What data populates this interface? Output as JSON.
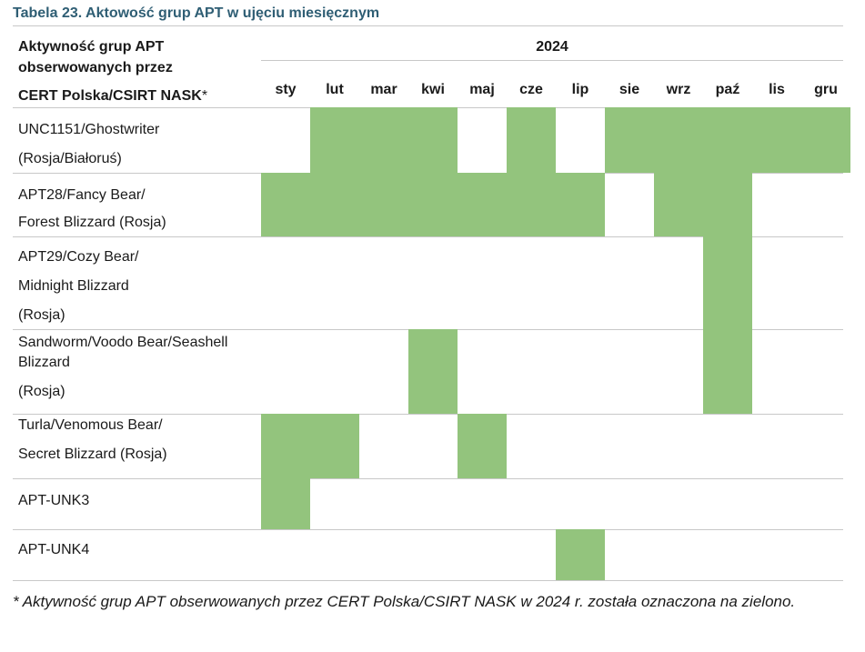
{
  "title": "Tabela 23. Aktowość grup APT w ujęciu miesięcznym",
  "header": {
    "label_line1": "Aktywność grup APT",
    "label_line2": "obserwowanych przez",
    "label_line3": "CERT Polska/CSIRT NASK",
    "label_asterisk": "*",
    "year": "2024"
  },
  "months": [
    "sty",
    "lut",
    "mar",
    "kwi",
    "maj",
    "cze",
    "lip",
    "sie",
    "wrz",
    "paź",
    "lis",
    "gru"
  ],
  "rows": [
    {
      "label_lines": [
        "UNC1151/Ghostwriter",
        "(Rosja/Białoruś)"
      ],
      "active": [
        false,
        true,
        true,
        true,
        false,
        true,
        false,
        true,
        true,
        true,
        true,
        true
      ]
    },
    {
      "label_lines": [
        "APT28/Fancy Bear/",
        "Forest Blizzard (Rosja)"
      ],
      "active": [
        true,
        true,
        true,
        true,
        true,
        true,
        true,
        false,
        true,
        true,
        false,
        false
      ]
    },
    {
      "label_lines": [
        "APT29/Cozy Bear/",
        "Midnight Blizzard",
        "(Rosja)"
      ],
      "active": [
        false,
        false,
        false,
        false,
        false,
        false,
        false,
        false,
        false,
        true,
        false,
        false
      ]
    },
    {
      "label_lines": [
        "Sandworm/Voodo  Bear/Seashell",
        "Blizzard",
        "(Rosja)"
      ],
      "active": [
        false,
        false,
        false,
        true,
        false,
        false,
        false,
        false,
        false,
        true,
        false,
        false
      ]
    },
    {
      "label_lines": [
        "Turla/Venomous Bear/",
        "Secret Blizzard (Rosja)"
      ],
      "active": [
        true,
        true,
        false,
        false,
        true,
        false,
        false,
        false,
        false,
        false,
        false,
        false
      ]
    },
    {
      "label_lines": [
        "APT-UNK3"
      ],
      "active": [
        true,
        false,
        false,
        false,
        false,
        false,
        false,
        false,
        false,
        false,
        false,
        false
      ]
    },
    {
      "label_lines": [
        "APT-UNK4"
      ],
      "active": [
        false,
        false,
        false,
        false,
        false,
        false,
        true,
        false,
        false,
        false,
        false,
        false
      ]
    }
  ],
  "active_color": "#93c47d",
  "footnote": "* Aktywność grup APT obserwowanych przez CERT Polska/CSIRT NASK w 2024 r. została oznaczona na zielono."
}
